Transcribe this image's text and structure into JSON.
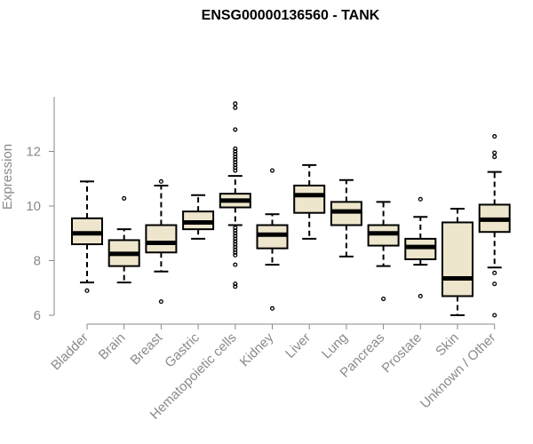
{
  "chart_data": {
    "type": "boxplot",
    "title": "ENSG00000136560 - TANK",
    "ylabel": "Expression",
    "xlabel": "",
    "ylim": [
      6,
      14
    ],
    "yticks": [
      6,
      8,
      10,
      12
    ],
    "grid": false,
    "box_fill": "#ede6cc",
    "axis_color": "#8a8a8a",
    "categories": [
      "Bladder",
      "Brain",
      "Breast",
      "Gastric",
      "Hematopoietic cells",
      "Kidney",
      "Liver",
      "Lung",
      "Pancreas",
      "Prostate",
      "Skin",
      "Unknown / Other"
    ],
    "boxes": [
      {
        "min": 7.2,
        "q1": 8.6,
        "median": 9.0,
        "q3": 9.55,
        "max": 10.9,
        "outliers": [
          6.9
        ]
      },
      {
        "min": 7.2,
        "q1": 7.8,
        "median": 8.25,
        "q3": 8.75,
        "max": 9.15,
        "outliers": [
          10.28
        ]
      },
      {
        "min": 7.6,
        "q1": 8.3,
        "median": 8.65,
        "q3": 9.3,
        "max": 10.75,
        "outliers": [
          6.5,
          10.9
        ]
      },
      {
        "min": 8.8,
        "q1": 9.15,
        "median": 9.4,
        "q3": 9.8,
        "max": 10.4,
        "outliers": []
      },
      {
        "min": 9.3,
        "q1": 9.95,
        "median": 10.2,
        "q3": 10.45,
        "max": 11.1,
        "outliers": [
          7.05,
          7.15,
          7.85,
          8.2,
          8.3,
          8.4,
          8.5,
          8.6,
          8.7,
          8.8,
          8.9,
          9.0,
          9.1,
          9.2,
          11.3,
          11.4,
          11.5,
          11.6,
          11.7,
          11.8,
          11.9,
          12.0,
          12.1,
          12.8,
          13.6,
          13.75
        ]
      },
      {
        "min": 7.85,
        "q1": 8.45,
        "median": 8.95,
        "q3": 9.3,
        "max": 9.7,
        "outliers": [
          6.25,
          11.3
        ]
      },
      {
        "min": 8.8,
        "q1": 9.75,
        "median": 10.4,
        "q3": 10.75,
        "max": 11.5,
        "outliers": []
      },
      {
        "min": 8.15,
        "q1": 9.3,
        "median": 9.8,
        "q3": 10.15,
        "max": 10.95,
        "outliers": []
      },
      {
        "min": 7.8,
        "q1": 8.55,
        "median": 9.0,
        "q3": 9.3,
        "max": 10.15,
        "outliers": [
          6.6
        ]
      },
      {
        "min": 7.85,
        "q1": 8.05,
        "median": 8.5,
        "q3": 8.8,
        "max": 9.6,
        "outliers": [
          6.7,
          10.25
        ]
      },
      {
        "min": 6.0,
        "q1": 6.7,
        "median": 7.35,
        "q3": 9.4,
        "max": 9.9,
        "outliers": []
      },
      {
        "min": 7.75,
        "q1": 9.05,
        "median": 9.5,
        "q3": 10.05,
        "max": 11.25,
        "outliers": [
          6.0,
          7.15,
          7.55,
          11.8,
          11.95,
          12.55
        ]
      }
    ]
  }
}
